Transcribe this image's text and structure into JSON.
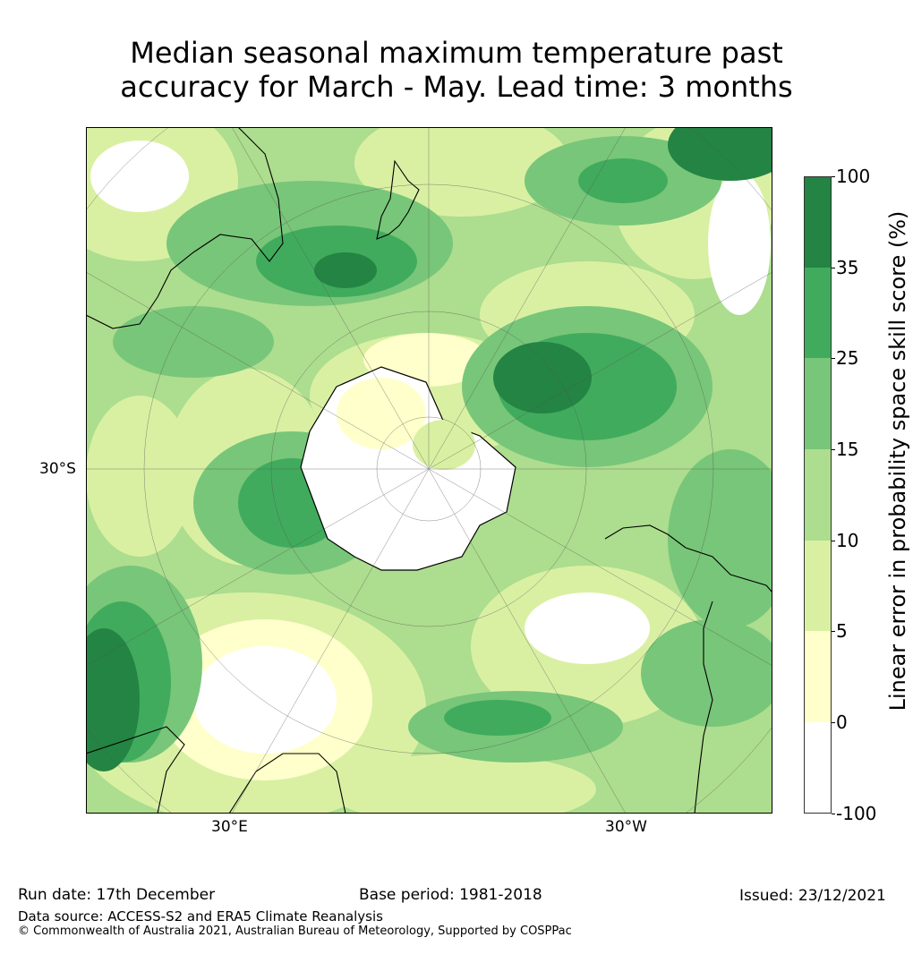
{
  "title": {
    "line1": "Median seasonal maximum temperature past",
    "line2": "accuracy for March - May. Lead time: 3 months"
  },
  "map": {
    "region": "Southern Hemisphere polar stereographic",
    "lat_labels": [
      "30°S"
    ],
    "lon_labels": [
      "30°E",
      "30°W"
    ]
  },
  "colorbar": {
    "label": "Linear error in probability space skill score (%)",
    "ticks": [
      "100",
      "35",
      "25",
      "15",
      "10",
      "5",
      "0",
      "-100"
    ],
    "bins": [
      {
        "range": "35 to 100",
        "color": "#238443"
      },
      {
        "range": "25 to 35",
        "color": "#41ab5d"
      },
      {
        "range": "15 to 25",
        "color": "#78c679"
      },
      {
        "range": "10 to 15",
        "color": "#addd8e"
      },
      {
        "range": "5 to 10",
        "color": "#d9f0a3"
      },
      {
        "range": "0 to 5",
        "color": "#ffffcc"
      },
      {
        "range": "-100 to 0",
        "color": "#ffffff"
      }
    ]
  },
  "footer": {
    "run_date": "Run date: 17th December",
    "base_period": "Base period: 1981-2018",
    "issued": "Issued: 23/12/2021",
    "data_source": "Data source: ACCESS-S2 and ERA5 Climate Reanalysis",
    "copyright": "© Commonwealth of Australia 2021, Australian Bureau of Meteorology, Supported by COSPPac"
  }
}
